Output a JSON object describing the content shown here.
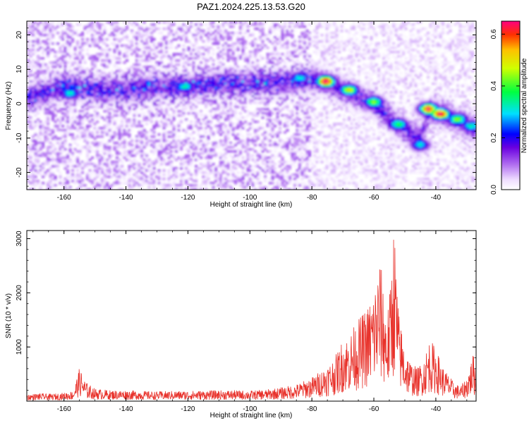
{
  "title": "PAZ1.2024.225.13.53.G20",
  "chart_data": [
    {
      "type": "heatmap",
      "xlabel": "Height of straight line (km)",
      "ylabel": "Frequency (Hz)",
      "xlim": [
        -172,
        -27
      ],
      "ylim": [
        -25,
        24
      ],
      "xticks": [
        -160,
        -140,
        -120,
        -100,
        -80,
        -60,
        -40
      ],
      "yticks": [
        20,
        10,
        0,
        -10,
        -20
      ],
      "colorbar": {
        "label": "Normalized spectral amplitude",
        "range": [
          0.0,
          0.65
        ],
        "ticks": [
          0.0,
          0.2,
          0.4,
          0.6
        ],
        "tick_labels": [
          "0.0",
          "0.2",
          "0.4",
          "0.6"
        ]
      },
      "ridge": [
        {
          "x": -170,
          "y": 2
        },
        {
          "x": -160,
          "y": 5
        },
        {
          "x": -150,
          "y": 4
        },
        {
          "x": -140,
          "y": 4
        },
        {
          "x": -130,
          "y": 5
        },
        {
          "x": -120,
          "y": 5
        },
        {
          "x": -110,
          "y": 6
        },
        {
          "x": -100,
          "y": 6
        },
        {
          "x": -90,
          "y": 6
        },
        {
          "x": -80,
          "y": 7
        },
        {
          "x": -75,
          "y": 6
        },
        {
          "x": -70,
          "y": 4
        },
        {
          "x": -65,
          "y": 2
        },
        {
          "x": -60,
          "y": 0
        },
        {
          "x": -55,
          "y": -4
        },
        {
          "x": -50,
          "y": -8
        },
        {
          "x": -45,
          "y": -10
        },
        {
          "x": -42,
          "y": -2
        },
        {
          "x": -38,
          "y": -3
        },
        {
          "x": -33,
          "y": -5
        },
        {
          "x": -28,
          "y": -7
        }
      ],
      "hotspots": [
        {
          "x": -75.5,
          "y": 6.5,
          "value": 0.64
        },
        {
          "x": -42.5,
          "y": -1.5,
          "value": 0.62
        },
        {
          "x": -38.5,
          "y": -3.0,
          "value": 0.63
        },
        {
          "x": -68,
          "y": 4,
          "value": 0.45
        },
        {
          "x": -60,
          "y": 0.5,
          "value": 0.4
        },
        {
          "x": -52,
          "y": -6,
          "value": 0.35
        },
        {
          "x": -33,
          "y": -4.5,
          "value": 0.4
        },
        {
          "x": -28.5,
          "y": -6.5,
          "value": 0.3
        },
        {
          "x": -158,
          "y": 3,
          "value": 0.3
        },
        {
          "x": -121,
          "y": 5,
          "value": 0.3
        },
        {
          "x": -84,
          "y": 7.5,
          "value": 0.28
        },
        {
          "x": -45,
          "y": -12,
          "value": 0.3
        }
      ]
    },
    {
      "type": "line",
      "xlabel": "Height of straight line (km)",
      "ylabel": "SNR (10 * v/v)",
      "xlim": [
        -172,
        -27
      ],
      "ylim": [
        0,
        3150
      ],
      "xticks": [
        -160,
        -140,
        -120,
        -100,
        -80,
        -60,
        -40
      ],
      "yticks": [
        1000,
        2000,
        3000
      ],
      "color": "#e8312a",
      "series": [
        {
          "x": [
            -172,
            -168,
            -164,
            -160,
            -157,
            -155,
            -153,
            -150,
            -145,
            -140,
            -135,
            -130,
            -125,
            -120,
            -115,
            -110,
            -105,
            -100,
            -95,
            -90,
            -85,
            -80,
            -77,
            -74,
            -72,
            -70,
            -68,
            -66,
            -64,
            -62,
            -60,
            -58,
            -57,
            -56,
            -55,
            -53.5,
            -52,
            -50,
            -48,
            -46,
            -44,
            -42,
            -40,
            -38,
            -36,
            -34,
            -32,
            -30,
            -28,
            -27
          ],
          "values": [
            110,
            130,
            120,
            140,
            170,
            560,
            320,
            210,
            180,
            180,
            170,
            160,
            170,
            170,
            175,
            180,
            180,
            175,
            190,
            230,
            280,
            400,
            520,
            650,
            800,
            1050,
            1100,
            1300,
            1450,
            1600,
            1900,
            2400,
            2000,
            1500,
            1700,
            3060,
            1500,
            900,
            650,
            560,
            700,
            1050,
            900,
            600,
            450,
            300,
            250,
            400,
            800,
            550
          ]
        }
      ]
    }
  ]
}
